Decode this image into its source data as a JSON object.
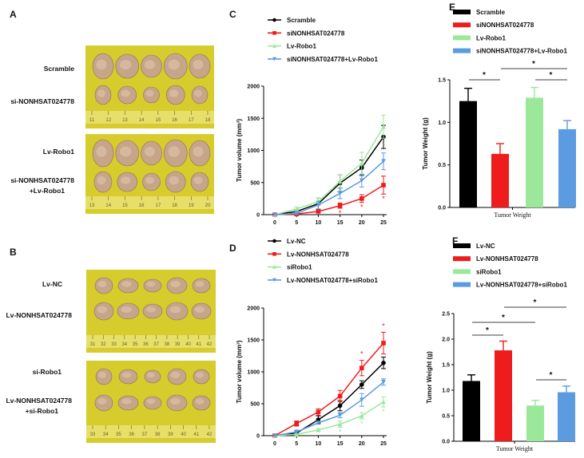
{
  "panels": {
    "A": {
      "label": "A",
      "groups": [
        "Scramble",
        "si-NONHSAT024778",
        "Lv-Robo1",
        "si-NONHSAT024778",
        "+Lv-Robo1"
      ],
      "ruler_top": [
        "11",
        "12",
        "13",
        "14",
        "15",
        "16",
        "17",
        "18"
      ],
      "ruler_bottom": [
        "13",
        "14",
        "15",
        "16",
        "17",
        "18",
        "19",
        "20"
      ]
    },
    "B": {
      "label": "B",
      "groups": [
        "Lv-NC",
        "Lv-NONHSAT024778",
        "si-Robo1",
        "Lv-NONHSAT024778",
        "+si-Robo1"
      ],
      "ruler_top": [
        "31",
        "32",
        "33",
        "34",
        "35",
        "36",
        "37",
        "38",
        "39",
        "40",
        "41",
        "42"
      ],
      "ruler_bottom": [
        "33",
        "34",
        "35",
        "36",
        "37",
        "38",
        "39",
        "40",
        "41",
        "42"
      ]
    }
  },
  "colors": {
    "black": "#000000",
    "red": "#ee1c1c",
    "green": "#9be89b",
    "blue": "#5b9be0",
    "photo_bg": "#d6cc2c"
  },
  "chart_data": [
    {
      "panel": "C",
      "type": "line",
      "ylabel": "Tumor volume (mm³)",
      "xlabel": "",
      "x": [
        0,
        5,
        10,
        15,
        20,
        25
      ],
      "ylim": [
        0,
        2000
      ],
      "yticks": [
        "0",
        "500",
        "1000",
        "1500",
        "2000"
      ],
      "xticks": [
        "0",
        "5",
        "10",
        "15",
        "20",
        "25"
      ],
      "legend_position": "top",
      "series": [
        {
          "name": "Scramble",
          "color": "#000000",
          "marker": "circle",
          "values": [
            0,
            50,
            170,
            490,
            730,
            1210
          ],
          "error": [
            0,
            20,
            90,
            130,
            120,
            180
          ]
        },
        {
          "name": "siNONHSAT024778",
          "color": "#ee1c1c",
          "marker": "square",
          "values": [
            0,
            10,
            50,
            140,
            250,
            460
          ],
          "error": [
            0,
            10,
            20,
            40,
            60,
            140
          ],
          "significant_at": [
            15,
            20,
            25
          ]
        },
        {
          "name": "Lv-Robo1",
          "color": "#9be89b",
          "marker": "triangle-up",
          "values": [
            0,
            90,
            200,
            520,
            800,
            1370
          ],
          "error": [
            0,
            30,
            60,
            100,
            170,
            180
          ]
        },
        {
          "name": "siNONHSAT024778+Lv-Robo1",
          "color": "#5b9be0",
          "marker": "triangle-down",
          "values": [
            0,
            20,
            150,
            330,
            530,
            830
          ],
          "error": [
            0,
            15,
            60,
            80,
            100,
            130
          ]
        }
      ]
    },
    {
      "panel": "D",
      "type": "line",
      "ylabel": "Tumor volume (mm³)",
      "xlabel": "",
      "x": [
        0,
        5,
        10,
        15,
        20,
        25
      ],
      "ylim": [
        0,
        2000
      ],
      "yticks": [
        "0",
        "500",
        "1000",
        "1500",
        "2000"
      ],
      "xticks": [
        "0",
        "5",
        "10",
        "15",
        "20",
        "25"
      ],
      "legend_position": "top",
      "series": [
        {
          "name": "Lv-NC",
          "color": "#000000",
          "marker": "circle",
          "values": [
            0,
            40,
            250,
            470,
            800,
            1140
          ],
          "error": [
            0,
            20,
            60,
            80,
            60,
            90
          ]
        },
        {
          "name": "Lv-NONHSAT024778",
          "color": "#ee1c1c",
          "marker": "square",
          "values": [
            0,
            190,
            370,
            620,
            1060,
            1450
          ],
          "error": [
            0,
            40,
            50,
            90,
            120,
            170
          ],
          "significant_at": [
            20,
            25
          ]
        },
        {
          "name": "siRobo1",
          "color": "#9be89b",
          "marker": "triangle-up",
          "values": [
            0,
            20,
            90,
            180,
            310,
            530
          ],
          "error": [
            0,
            10,
            20,
            50,
            50,
            80
          ],
          "significant_at": [
            15,
            20,
            25
          ]
        },
        {
          "name": "Lv-NONHSAT024778+siRobo1",
          "color": "#5b9be0",
          "marker": "triangle-down",
          "values": [
            0,
            60,
            200,
            320,
            560,
            840
          ],
          "error": [
            0,
            20,
            20,
            40,
            100,
            50
          ]
        }
      ]
    },
    {
      "panel": "E",
      "type": "bar",
      "ylabel": "Tumor Weight (g)",
      "xlabel": "Tumor Weight",
      "ylim": [
        0,
        1.5
      ],
      "yticks": [
        "0.0",
        "0.5",
        "1.0",
        "1.5"
      ],
      "legend_position": "top",
      "categories": [
        "Scramble",
        "siNONHSAT024778",
        "Lv-Robo1",
        "siNONHSAT024778+Lv-Robo1"
      ],
      "colors": [
        "#000000",
        "#ee1c1c",
        "#9be89b",
        "#5b9be0"
      ],
      "values": [
        1.25,
        0.63,
        1.29,
        0.92
      ],
      "error": [
        0.15,
        0.12,
        0.12,
        0.1
      ],
      "significance": [
        {
          "from": 0,
          "to": 1,
          "label": "*"
        },
        {
          "from": 1,
          "to": 3,
          "label": "*"
        },
        {
          "from": 2,
          "to": 3,
          "label": "*"
        }
      ]
    },
    {
      "panel": "F",
      "type": "bar",
      "ylabel": "Tumor Weight (g)",
      "xlabel": "Tumor Weight",
      "ylim": [
        0,
        2.5
      ],
      "yticks": [
        "0.0",
        "0.5",
        "1.0",
        "1.5",
        "2.0",
        "2.5"
      ],
      "legend_position": "top",
      "categories": [
        "Lv-NC",
        "Lv-NONHSAT024778",
        "siRobo1",
        "Lv-NONHSAT024778+siRobo1"
      ],
      "colors": [
        "#000000",
        "#ee1c1c",
        "#9be89b",
        "#5b9be0"
      ],
      "values": [
        1.18,
        1.78,
        0.7,
        0.96
      ],
      "error": [
        0.12,
        0.18,
        0.1,
        0.12
      ],
      "significance": [
        {
          "from": 0,
          "to": 1,
          "label": "*"
        },
        {
          "from": 0,
          "to": 2,
          "label": "*"
        },
        {
          "from": 1,
          "to": 3,
          "label": "*"
        },
        {
          "from": 2,
          "to": 3,
          "label": "*"
        }
      ]
    }
  ]
}
